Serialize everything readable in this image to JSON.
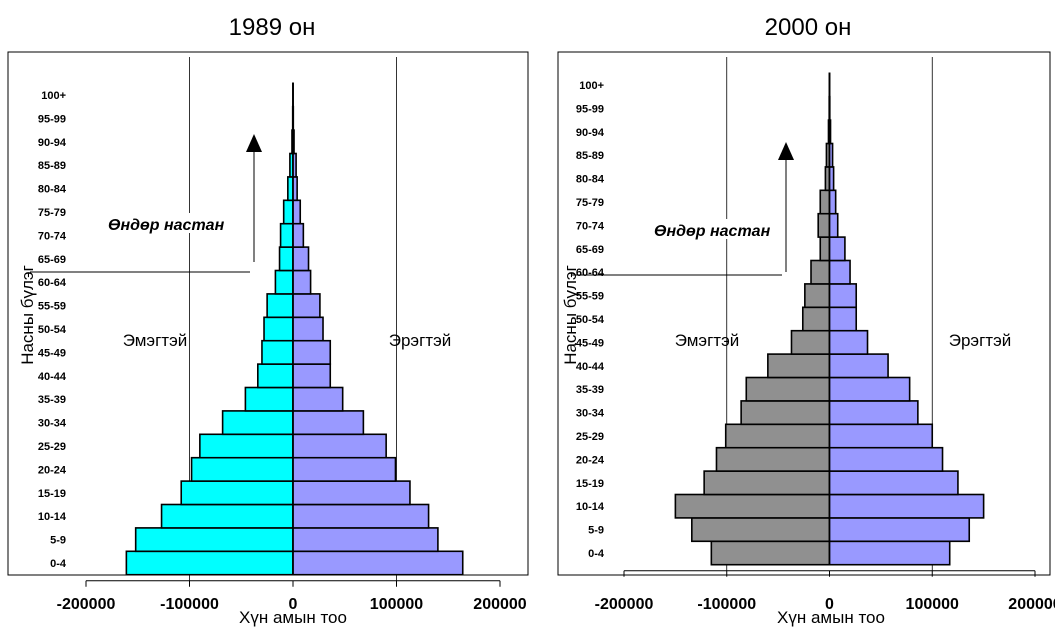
{
  "chart_data": [
    {
      "type": "bar",
      "orientation": "horizontal",
      "title": "1989 он",
      "xlabel": "Хүн амын тоо",
      "ylabel": "Насны бүлэг",
      "xlim": [
        -200000,
        200000
      ],
      "xticks": [
        "-200000",
        "-100000",
        "0",
        "100000",
        "200000"
      ],
      "categories": [
        "0-4",
        "5-9",
        "10-14",
        "15-19",
        "20-24",
        "25-29",
        "30-34",
        "35-39",
        "40-44",
        "45-49",
        "50-54",
        "55-59",
        "60-64",
        "65-69",
        "70-74",
        "75-79",
        "80-84",
        "85-89",
        "90-94",
        "95-99",
        "100+"
      ],
      "series": [
        {
          "name": "Эмэгтэй",
          "color": "#00ffff",
          "values": [
            -161000,
            -152000,
            -127000,
            -108000,
            -98000,
            -90000,
            -68000,
            -46000,
            -34000,
            -30000,
            -28000,
            -25000,
            -17000,
            -13000,
            -12000,
            -9000,
            -5000,
            -3000,
            -1000,
            -300,
            -100
          ]
        },
        {
          "name": "Эрэгтэй",
          "color": "#9999ff",
          "values": [
            164000,
            140000,
            131000,
            113000,
            99000,
            90000,
            68000,
            48000,
            36000,
            36000,
            29000,
            26000,
            17000,
            15000,
            10000,
            7000,
            4000,
            3000,
            1000,
            300,
            100
          ]
        }
      ],
      "annotation": "Өндөр настан",
      "grid": true
    },
    {
      "type": "bar",
      "orientation": "horizontal",
      "title": "2000 он",
      "xlabel": "Хүн амын тоо",
      "ylabel": "Насны бүлэг",
      "xlim": [
        -200000,
        200000
      ],
      "xticks": [
        "-200000",
        "-100000",
        "0",
        "100000",
        "200000"
      ],
      "categories": [
        "0-4",
        "5-9",
        "10-14",
        "15-19",
        "20-24",
        "25-29",
        "30-34",
        "35-39",
        "40-44",
        "45-49",
        "50-54",
        "55-59",
        "60-64",
        "65-69",
        "70-74",
        "75-79",
        "80-84",
        "85-89",
        "90-94",
        "95-99",
        "100+"
      ],
      "series": [
        {
          "name": "Эмэгтэй",
          "color": "#909090",
          "values": [
            -115000,
            -134000,
            -150000,
            -122000,
            -110000,
            -101000,
            -86000,
            -81000,
            -60000,
            -37000,
            -26000,
            -24000,
            -18000,
            -9000,
            -11000,
            -9000,
            -4000,
            -3000,
            -1000,
            -300,
            -100
          ]
        },
        {
          "name": "Эрэгтэй",
          "color": "#9999ff",
          "values": [
            117000,
            136000,
            150000,
            125000,
            110000,
            100000,
            86000,
            78000,
            57000,
            37000,
            26000,
            26000,
            20000,
            15000,
            8000,
            6000,
            4000,
            3000,
            1000,
            300,
            100
          ]
        }
      ],
      "annotation": "Өндөр настан",
      "grid": true
    }
  ]
}
